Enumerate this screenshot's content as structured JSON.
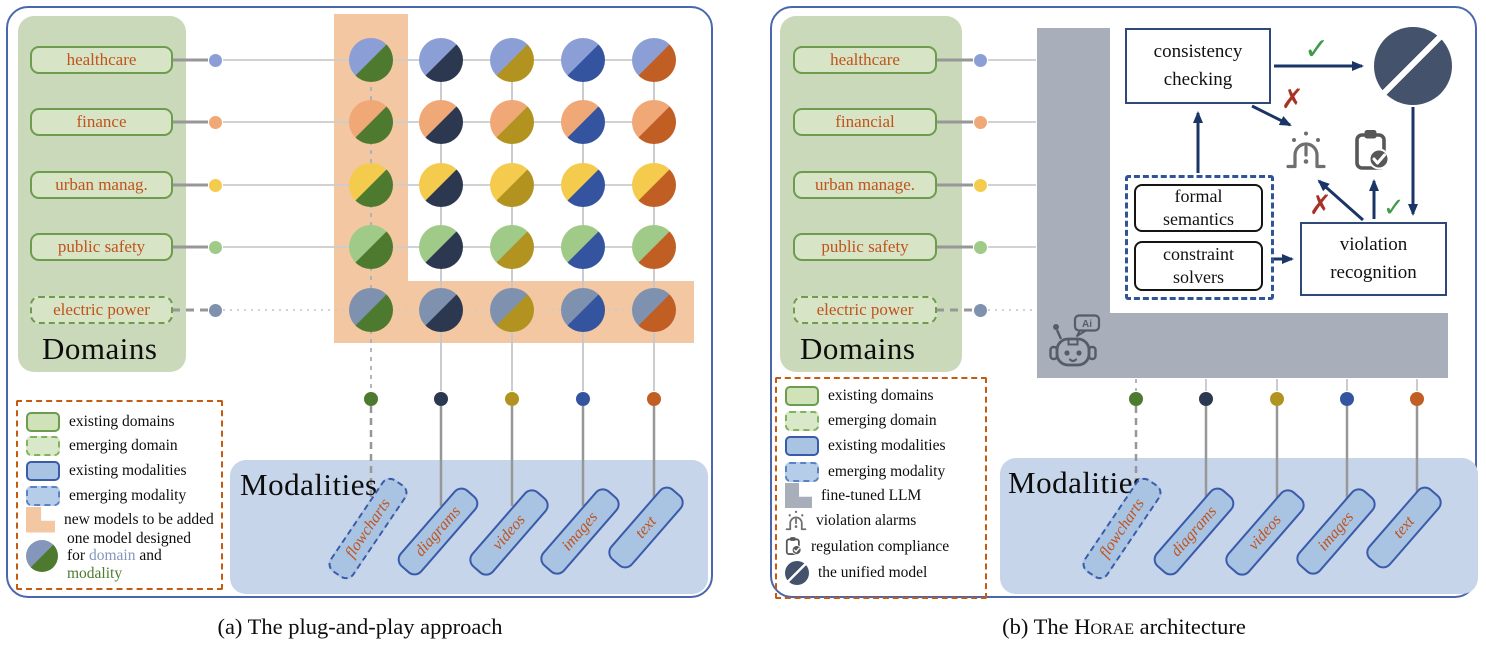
{
  "colors": {
    "panel_border": "#4a67ae",
    "domains_box_bg": "#cbd9bb",
    "domain_pill_bg": "#d7e5c6",
    "domain_pill_border": "#6d9c4e",
    "rust_text": "#c0531c",
    "modalities_box_bg": "#c6d5ea",
    "modality_pill_bg": "#a9c3e3",
    "modality_pill_border": "#3a5ba9",
    "legend_border": "#c55a11",
    "highlight_band": "#f4c7a3",
    "llm_gray": "#a8aeba",
    "arrow_blue": "#1b3567",
    "unified_circle": "#44526b",
    "check_green": "#3f9b48",
    "cross_red": "#a93226",
    "icon_gray": "#6f6f6f",
    "word_domain": "#8497bb",
    "word_modality": "#4d7a2e"
  },
  "panel_a": {
    "domains_title": "Domains",
    "modalities_title": "Modalities",
    "domains": [
      {
        "label": "healthcare",
        "color": "#8b9fd6",
        "dashed": false
      },
      {
        "label": "finance",
        "color": "#efa876",
        "dashed": false
      },
      {
        "label": "urban manag.",
        "color": "#f5cb4d",
        "dashed": false
      },
      {
        "label": "public safety",
        "color": "#9fca88",
        "dashed": false
      },
      {
        "label": "electric power",
        "color": "#7e92af",
        "dashed": true
      }
    ],
    "modalities": [
      {
        "label": "flowcharts",
        "color": "#4d7a2e",
        "dashed": true
      },
      {
        "label": "diagrams",
        "color": "#2c3850",
        "dashed": false
      },
      {
        "label": "videos",
        "color": "#b2931f",
        "dashed": false
      },
      {
        "label": "images",
        "color": "#35549f",
        "dashed": false
      },
      {
        "label": "text",
        "color": "#c05e24",
        "dashed": false
      }
    ],
    "legend_items": [
      {
        "icon": "existing-domains",
        "label": "existing domains"
      },
      {
        "icon": "emerging-domain",
        "label": "emerging domain"
      },
      {
        "icon": "existing-modalities",
        "label": "existing modalities"
      },
      {
        "icon": "emerging-modality",
        "label": "emerging modality"
      },
      {
        "icon": "new-models",
        "label": "new models to be added"
      },
      {
        "icon": "one-model",
        "line1": "one model designed",
        "line2_pre": "for ",
        "line2_domain": "domain",
        "line2_post": " and",
        "line3": "modality"
      }
    ],
    "caption": "(a) The plug-and-play approach"
  },
  "panel_b": {
    "domains_title": "Domains",
    "modalities_title": "Modalities",
    "domains": [
      {
        "label": "healthcare",
        "color": "#8b9fd6",
        "dashed": false
      },
      {
        "label": "financial",
        "color": "#efa876",
        "dashed": false
      },
      {
        "label": "urban manage.",
        "color": "#f5cb4d",
        "dashed": false
      },
      {
        "label": "public safety",
        "color": "#9fca88",
        "dashed": false
      },
      {
        "label": "electric power",
        "color": "#7e92af",
        "dashed": true
      }
    ],
    "modalities": [
      {
        "label": "flowcharts",
        "color": "#4d7a2e",
        "dashed": true
      },
      {
        "label": "diagrams",
        "color": "#2c3850",
        "dashed": false
      },
      {
        "label": "videos",
        "color": "#b2931f",
        "dashed": false
      },
      {
        "label": "images",
        "color": "#35549f",
        "dashed": false
      },
      {
        "label": "text",
        "color": "#c05e24",
        "dashed": false
      }
    ],
    "architecture": {
      "consistency_checking": {
        "line1": "consistency",
        "line2": "checking"
      },
      "formal_semantics": {
        "line1": "formal",
        "line2": "semantics"
      },
      "constraint_solvers": {
        "line1": "constraint",
        "line2": "solvers"
      },
      "violation_recognition": {
        "line1": "violation",
        "line2": "recognition"
      },
      "check_mark": "✓",
      "cross_mark": "✗",
      "ai_label": "Ai"
    },
    "legend_items": [
      {
        "icon": "existing-domains",
        "label": "existing domains"
      },
      {
        "icon": "emerging-domain",
        "label": "emerging domain"
      },
      {
        "icon": "existing-modalities",
        "label": "existing modalities"
      },
      {
        "icon": "emerging-modality",
        "label": "emerging modality"
      },
      {
        "icon": "fine-tuned-llm",
        "label": "fine-tuned LLM"
      },
      {
        "icon": "violation-alarms",
        "label": "violation alarms"
      },
      {
        "icon": "regulation-compliance",
        "label": "regulation compliance"
      },
      {
        "icon": "unified-model",
        "label": "the unified model"
      }
    ],
    "caption_prefix": "(b) The ",
    "caption_smallcaps": "Horae",
    "caption_suffix": " architecture"
  }
}
